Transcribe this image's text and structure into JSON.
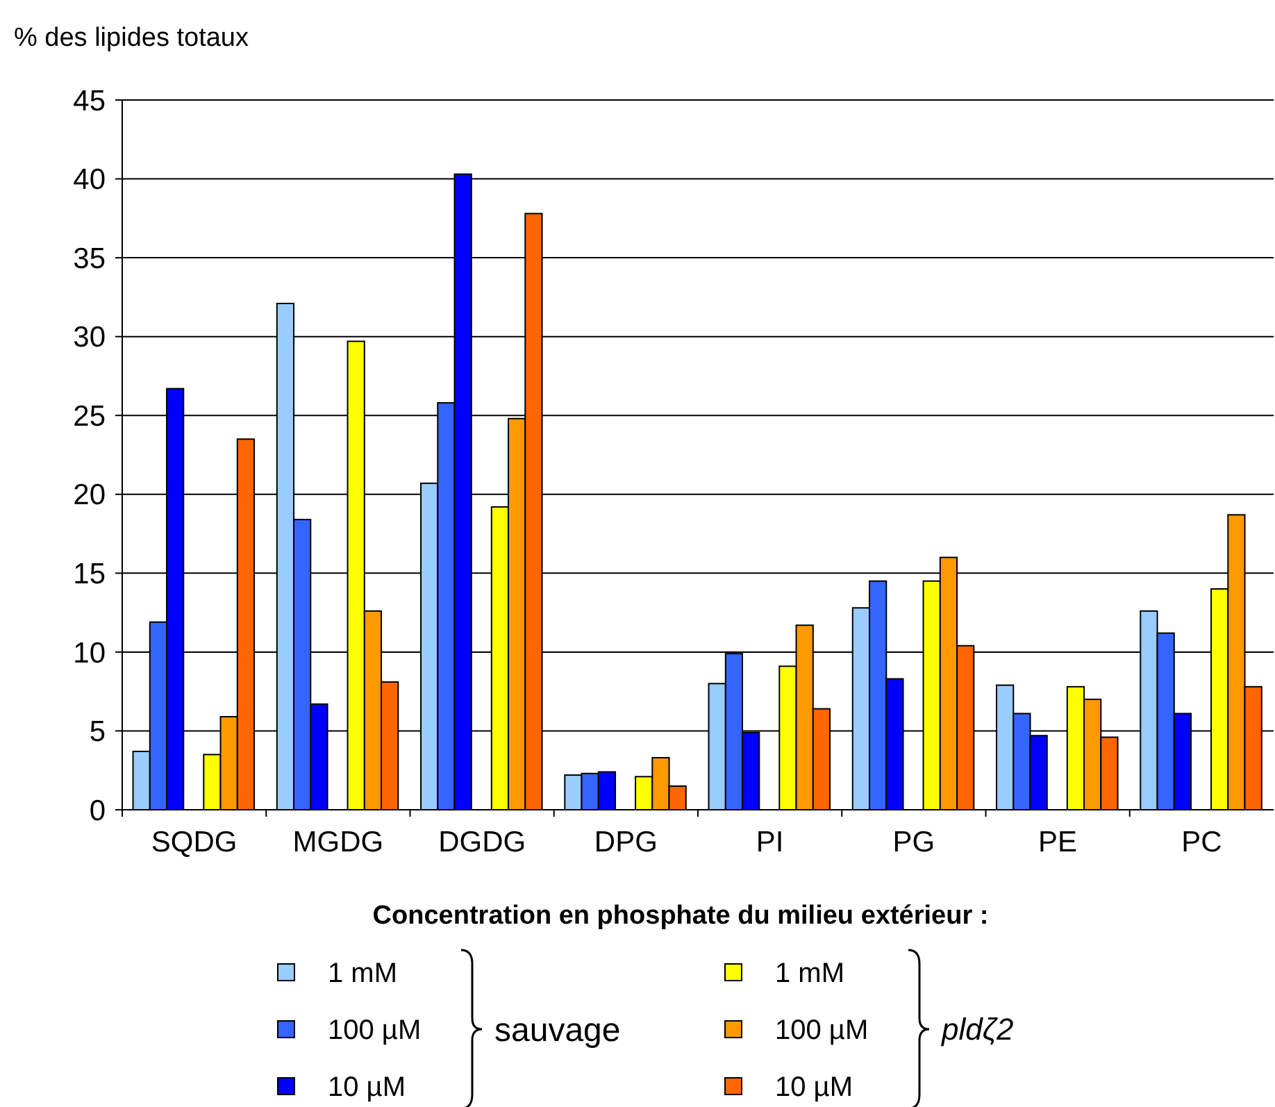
{
  "chart_data": {
    "type": "bar",
    "ylabel": "% des lipides totaux",
    "legend_title": "Concentration en phosphate du milieu extérieur :",
    "categories": [
      "SQDG",
      "MGDG",
      "DGDG",
      "DPG",
      "PI",
      "PG",
      "PE",
      "PC"
    ],
    "series": [
      {
        "name": "1 mM",
        "color": "#99ccff",
        "values": [
          3.7,
          32.1,
          20.7,
          2.2,
          8.0,
          12.8,
          7.9,
          12.6
        ]
      },
      {
        "name": "100 µM",
        "color": "#3366ff",
        "values": [
          11.9,
          18.4,
          25.8,
          2.3,
          9.9,
          14.5,
          6.1,
          11.2
        ]
      },
      {
        "name": "10 µM",
        "color": "#0000ff",
        "values": [
          26.7,
          6.7,
          40.3,
          2.4,
          4.9,
          8.3,
          4.7,
          6.1
        ]
      },
      {
        "name": "1 mM",
        "color": "#ffff00",
        "values": [
          3.5,
          29.7,
          19.2,
          2.1,
          9.1,
          14.5,
          7.8,
          14.0
        ]
      },
      {
        "name": "100 µM",
        "color": "#ff9900",
        "values": [
          5.9,
          12.6,
          24.8,
          3.3,
          11.7,
          16.0,
          7.0,
          18.7
        ]
      },
      {
        "name": "10 µM",
        "color": "#ff6600",
        "values": [
          23.5,
          8.1,
          37.8,
          1.5,
          6.4,
          10.4,
          4.6,
          7.8
        ]
      }
    ],
    "annotations": [
      "sauvage",
      "pldζ2"
    ],
    "ylim": [
      0,
      45
    ],
    "yticks": [
      0,
      5,
      10,
      15,
      20,
      25,
      30,
      35,
      40,
      45
    ],
    "grid": "y",
    "legend": "bottom"
  }
}
